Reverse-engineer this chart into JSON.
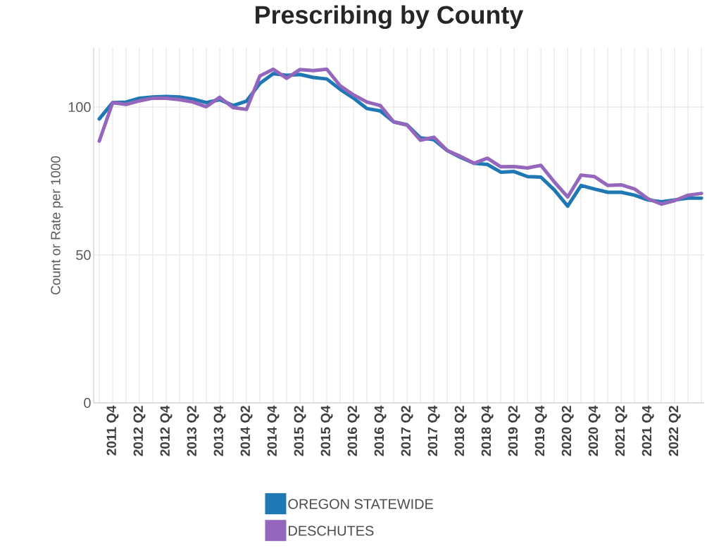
{
  "chart_data": {
    "type": "line",
    "title": "Prescribing by County",
    "ylabel": "Count or Rate per 1000",
    "categories": [
      null,
      "2011 Q4",
      null,
      "2012 Q2",
      null,
      "2012 Q4",
      null,
      "2013 Q2",
      null,
      "2013 Q4",
      null,
      "2014 Q2",
      null,
      "2014 Q4",
      null,
      "2015 Q2",
      null,
      "2015 Q4",
      null,
      "2016 Q2",
      null,
      "2016 Q4",
      null,
      "2017 Q2",
      null,
      "2017 Q4",
      null,
      "2018 Q2",
      null,
      "2018 Q4",
      null,
      "2019 Q2",
      null,
      "2019 Q4",
      null,
      "2020 Q2",
      null,
      "2020 Q4",
      null,
      "2021 Q2",
      null,
      "2021 Q4",
      null,
      "2022 Q2",
      null,
      null
    ],
    "series": [
      {
        "name": "OREGON STATEWIDE",
        "color": "#1f77b4",
        "values": [
          96,
          101.5,
          101.7,
          103,
          103.4,
          103.6,
          103.4,
          102.7,
          101.5,
          102.5,
          100.5,
          102,
          108,
          111.3,
          110.7,
          111,
          110,
          109.5,
          106,
          103,
          99.5,
          98.7,
          95,
          94,
          89.6,
          89,
          85.3,
          83,
          81,
          80.6,
          78,
          78.2,
          76.5,
          76.3,
          72,
          66.5,
          73.5,
          72.3,
          71.2,
          71.2,
          70.2,
          68.6,
          68,
          68.6,
          69.2,
          69.2
        ]
      },
      {
        "name": "DESCHUTES",
        "color": "#9467bd",
        "values": [
          88.5,
          101.5,
          100.9,
          102.1,
          103,
          103,
          102.5,
          101.7,
          100.1,
          103.3,
          99.8,
          99.2,
          110.5,
          112.8,
          109.7,
          112.7,
          112.3,
          112.8,
          107.2,
          104.1,
          101.7,
          100.5,
          95,
          93.9,
          88.8,
          89.8,
          85.3,
          83.3,
          81,
          82.7,
          79.8,
          79.9,
          79.4,
          80.3,
          74.7,
          69.6,
          77,
          76.5,
          73.5,
          73.7,
          72.3,
          69,
          67.2,
          68.4,
          70.2,
          70.8
        ]
      }
    ],
    "ylim": [
      0,
      120
    ],
    "yticks": [
      0,
      50,
      100
    ],
    "grid": true,
    "legend": "bottom",
    "marker": "none",
    "line_style": "solid"
  }
}
